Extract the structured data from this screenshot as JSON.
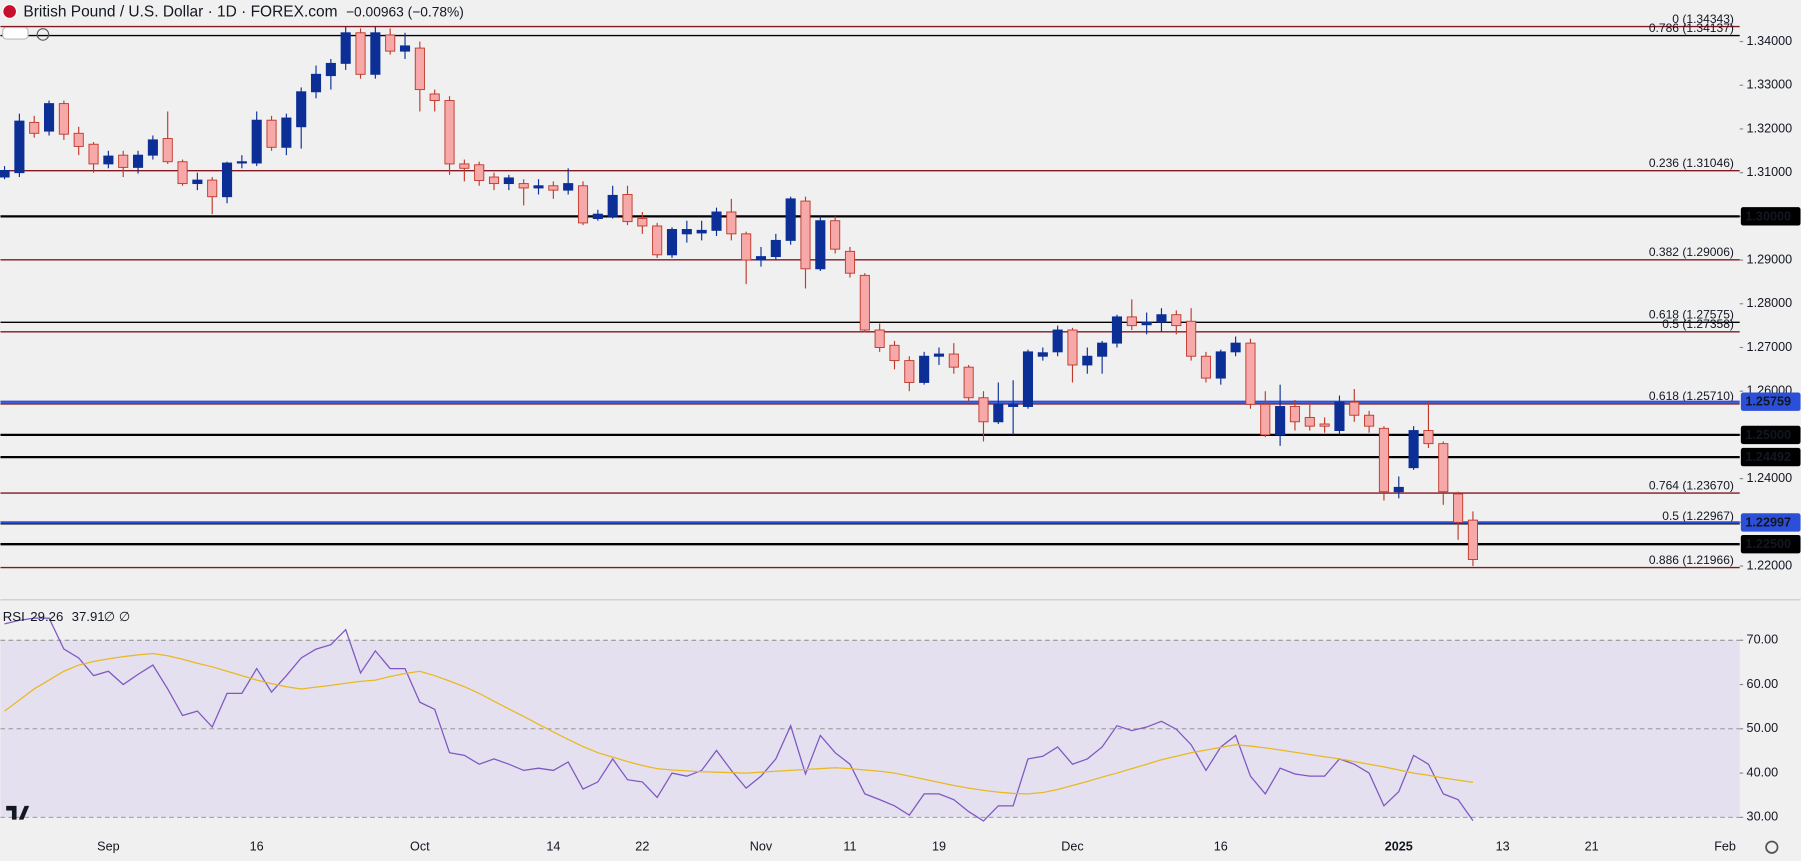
{
  "chart_data": [
    {
      "type": "candlestick",
      "title": "British Pound / U.S. Dollar · 1D · FOREX.com",
      "change": "−0.00963 (−0.78%)",
      "categories": [
        null,
        null,
        null,
        null,
        null,
        null,
        null,
        "Sep",
        null,
        null,
        null,
        null,
        null,
        null,
        null,
        null,
        null,
        "16",
        null,
        null,
        null,
        null,
        null,
        null,
        null,
        null,
        null,
        null,
        "Oct",
        null,
        null,
        null,
        null,
        null,
        null,
        null,
        null,
        "14",
        null,
        null,
        null,
        null,
        null,
        "22",
        null,
        null,
        null,
        null,
        null,
        null,
        null,
        "Nov",
        null,
        null,
        null,
        null,
        null,
        "11",
        null,
        null,
        null,
        null,
        null,
        "19",
        null,
        null,
        null,
        null,
        null,
        null,
        null,
        null,
        "Dec",
        null,
        null,
        null,
        null,
        null,
        null,
        null,
        null,
        null,
        "16",
        null,
        null,
        null,
        null,
        null,
        null,
        null,
        null,
        null,
        null,
        null,
        "2025",
        null,
        null,
        null,
        null,
        null,
        null,
        "13",
        null,
        null,
        null,
        null,
        null,
        "21",
        null,
        null,
        null,
        null,
        null,
        null,
        null,
        null,
        "Feb"
      ],
      "open": [
        1.309,
        1.31,
        1.3215,
        1.3195,
        1.3258,
        1.319,
        1.3165,
        1.312,
        1.314,
        1.3112,
        1.314,
        1.3178,
        1.3125,
        1.3075,
        1.3083,
        1.3045,
        1.3122,
        1.3122,
        1.322,
        1.3158,
        1.3205,
        1.3285,
        1.3322,
        1.335,
        1.342,
        1.3325,
        1.3415,
        1.3378,
        1.3385,
        1.328,
        1.3265,
        1.312,
        1.3118,
        1.309,
        1.3075,
        1.3075,
        1.3065,
        1.307,
        1.306,
        1.307,
        1.2995,
        1.3,
        1.305,
        1.2995,
        1.2978,
        1.2912,
        1.296,
        1.2962,
        1.2968,
        1.301,
        1.296,
        1.29,
        1.2908,
        1.2945,
        1.3035,
        1.288,
        1.299,
        1.292,
        1.2865,
        1.274,
        1.2705,
        1.267,
        1.262,
        1.268,
        1.2685,
        1.2655,
        1.2585,
        1.253,
        1.2565,
        1.2565,
        1.268,
        1.269,
        1.274,
        1.266,
        1.268,
        1.271,
        1.277,
        1.2752,
        1.2758,
        1.2775,
        1.276,
        1.268,
        1.263,
        1.269,
        1.271,
        1.257,
        1.25,
        1.2565,
        1.254,
        1.2525,
        1.251,
        1.2575,
        1.2545,
        1.2515,
        1.237,
        1.2425,
        1.251,
        1.248,
        1.2365,
        1.2305,
        null,
        null,
        null,
        null,
        null,
        null,
        null,
        null,
        null,
        null,
        null,
        null,
        null,
        null,
        null,
        null,
        null
      ],
      "high": [
        1.3115,
        1.3235,
        1.323,
        1.3265,
        1.3265,
        1.3205,
        1.317,
        1.315,
        1.315,
        1.315,
        1.3185,
        1.324,
        1.313,
        1.31,
        1.309,
        1.3125,
        1.314,
        1.324,
        1.323,
        1.3235,
        1.3295,
        1.3345,
        1.336,
        1.3434,
        1.343,
        1.3434,
        1.343,
        1.342,
        1.34,
        1.329,
        1.3275,
        1.313,
        1.3125,
        1.31,
        1.3095,
        1.3085,
        1.3085,
        1.308,
        1.311,
        1.308,
        1.3015,
        1.307,
        1.307,
        1.301,
        1.2985,
        1.2975,
        1.299,
        1.299,
        1.302,
        1.304,
        1.2965,
        1.293,
        1.296,
        1.3045,
        1.3045,
        1.3,
        1.3,
        1.293,
        1.287,
        1.2755,
        1.2715,
        1.268,
        1.269,
        1.27,
        1.271,
        1.266,
        1.26,
        1.262,
        1.2625,
        1.2695,
        1.27,
        1.275,
        1.2745,
        1.27,
        1.2715,
        1.2775,
        1.281,
        1.278,
        1.279,
        1.2785,
        1.279,
        1.269,
        1.2695,
        1.2725,
        1.272,
        1.26,
        1.2615,
        1.258,
        1.2575,
        1.254,
        1.259,
        1.2605,
        1.2555,
        1.252,
        1.2405,
        1.252,
        1.2575,
        1.2485,
        1.237,
        1.2325,
        null,
        null,
        null,
        null,
        null,
        null,
        null,
        null,
        null,
        null,
        null,
        null,
        null,
        null,
        null,
        null,
        null
      ],
      "low": [
        1.3085,
        1.309,
        1.318,
        1.3185,
        1.3175,
        1.314,
        1.31,
        1.311,
        1.309,
        1.3098,
        1.313,
        1.312,
        1.307,
        1.306,
        1.3005,
        1.303,
        1.311,
        1.3115,
        1.315,
        1.314,
        1.3155,
        1.327,
        1.329,
        1.3335,
        1.3315,
        1.3315,
        1.337,
        1.336,
        1.324,
        1.324,
        1.3095,
        1.308,
        1.307,
        1.306,
        1.306,
        1.3025,
        1.305,
        1.304,
        1.305,
        1.298,
        1.299,
        1.2995,
        1.298,
        1.296,
        1.2905,
        1.2905,
        1.294,
        1.2945,
        1.2955,
        1.2945,
        1.2845,
        1.2885,
        1.29,
        1.2935,
        1.2835,
        1.2875,
        1.2915,
        1.286,
        1.2735,
        1.269,
        1.265,
        1.26,
        1.2615,
        1.266,
        1.264,
        1.2575,
        1.2485,
        1.2525,
        1.25,
        1.256,
        1.267,
        1.268,
        1.262,
        1.264,
        1.264,
        1.27,
        1.274,
        1.273,
        1.2735,
        1.273,
        1.267,
        1.262,
        1.2615,
        1.268,
        1.256,
        1.2495,
        1.2475,
        1.251,
        1.251,
        1.2505,
        1.25,
        1.253,
        1.2505,
        1.235,
        1.2355,
        1.242,
        1.247,
        1.234,
        1.226,
        1.22,
        null,
        null,
        null,
        null,
        null,
        null,
        null,
        null,
        null,
        null,
        null,
        null,
        null,
        null,
        null,
        null,
        null
      ],
      "close": [
        1.3105,
        1.3218,
        1.319,
        1.3258,
        1.3188,
        1.316,
        1.312,
        1.3138,
        1.3112,
        1.314,
        1.3175,
        1.3125,
        1.3075,
        1.3083,
        1.3045,
        1.3122,
        1.3125,
        1.322,
        1.3158,
        1.3225,
        1.3285,
        1.3325,
        1.335,
        1.342,
        1.3325,
        1.342,
        1.3378,
        1.339,
        1.329,
        1.3265,
        1.312,
        1.311,
        1.3082,
        1.3075,
        1.3088,
        1.3065,
        1.307,
        1.306,
        1.3075,
        1.2985,
        1.3005,
        1.3048,
        1.2988,
        1.2978,
        1.2912,
        1.297,
        1.297,
        1.2968,
        1.301,
        1.296,
        1.29,
        1.2908,
        1.2945,
        1.304,
        1.288,
        1.299,
        1.2925,
        1.287,
        1.274,
        1.27,
        1.267,
        1.262,
        1.268,
        1.2685,
        1.2655,
        1.2585,
        1.253,
        1.257,
        1.257,
        1.269,
        1.2688,
        1.274,
        1.266,
        1.268,
        1.271,
        1.277,
        1.275,
        1.2758,
        1.2775,
        1.275,
        1.268,
        1.263,
        1.269,
        1.271,
        1.257,
        1.25,
        1.2565,
        1.253,
        1.252,
        1.252,
        1.2575,
        1.2545,
        1.252,
        1.237,
        1.238,
        1.251,
        1.248,
        1.237,
        1.23,
        1.2215,
        null,
        null,
        null,
        null,
        null,
        null,
        null,
        null,
        null,
        null,
        null,
        null,
        null,
        null,
        null,
        null,
        null
      ],
      "up_color": "#0c2f96",
      "down_color": "#f7a8a8",
      "down_border": "#c0392b",
      "ylim": [
        1.2124,
        1.3495
      ],
      "yticks": [
        {
          "value": 1.22,
          "label": "1.22000"
        },
        {
          "value": 1.23,
          "label": "1.23000"
        },
        {
          "value": 1.24,
          "label": "1.24000"
        },
        {
          "value": 1.25,
          "label": "1.25000"
        },
        {
          "value": 1.26,
          "label": "1.26000"
        },
        {
          "value": 1.27,
          "label": "1.27000"
        },
        {
          "value": 1.28,
          "label": "1.28000"
        },
        {
          "value": 1.29,
          "label": "1.29000"
        },
        {
          "value": 1.3,
          "label": "1.30000"
        },
        {
          "value": 1.31,
          "label": "1.31000"
        },
        {
          "value": 1.32,
          "label": "1.32000"
        },
        {
          "value": 1.33,
          "label": "1.33000"
        },
        {
          "value": 1.34,
          "label": "1.34000"
        }
      ],
      "fib_levels": [
        {
          "value": 1.34343,
          "label": "0 (1.34343)",
          "color": "#801922"
        },
        {
          "value": 1.34137,
          "label": "0.786 (1.34137)",
          "color": "#000000"
        },
        {
          "value": 1.31046,
          "label": "0.236 (1.31046)",
          "color": "#801922"
        },
        {
          "value": 1.29006,
          "label": "0.382 (1.29006)",
          "color": "#801922"
        },
        {
          "value": 1.27575,
          "label": "0.618 (1.27575)",
          "color": "#000000"
        },
        {
          "value": 1.27358,
          "label": "0.5 (1.27358)",
          "color": "#801922"
        },
        {
          "value": 1.2571,
          "label": "0.618 (1.25710)",
          "color": "#801922"
        },
        {
          "value": 1.2367,
          "label": "0.764 (1.23670)",
          "color": "#801922"
        },
        {
          "value": 1.22967,
          "label": "0.5 (1.22967)",
          "color": "#000000"
        },
        {
          "value": 1.21966,
          "label": "0.886 (1.21966)",
          "color": "#801922"
        }
      ],
      "lines": [
        {
          "value": 1.3,
          "label": "1.30000",
          "color": "#000000"
        },
        {
          "value": 1.25759,
          "label": "1.25759",
          "color": "#2b4fd8"
        },
        {
          "value": 1.25,
          "label": "1.25000",
          "color": "#000000"
        },
        {
          "value": 1.24492,
          "label": "1.24492",
          "color": "#000000"
        },
        {
          "value": 1.22997,
          "label": "1.22997",
          "color": "#2b4fd8"
        },
        {
          "value": 1.225,
          "label": "1.22500",
          "color": "#000000"
        }
      ]
    },
    {
      "type": "line",
      "title": "RSI",
      "placeholders": "∅ ∅",
      "series": [
        {
          "color": "#7e57c2",
          "values": [
            73.7,
            74.5,
            75,
            75,
            68,
            66,
            62,
            63,
            60,
            62.3,
            64.4,
            59,
            53,
            54,
            50.4,
            58,
            58,
            63.6,
            58.3,
            62,
            66,
            68,
            69,
            72.4,
            62.6,
            67.6,
            63.6,
            63.6,
            56,
            54.4,
            44.6,
            44,
            42,
            43.2,
            42,
            40.6,
            41.1,
            40.6,
            42.5,
            36.4,
            38,
            43.2,
            38.5,
            38,
            34.5,
            40,
            39.3,
            40.6,
            45.1,
            40.6,
            36.6,
            39.3,
            43.2,
            50.7,
            39.8,
            48.5,
            44.6,
            42,
            35.3,
            34,
            32.6,
            30.5,
            35.3,
            35.3,
            34,
            31.3,
            29.2,
            32.6,
            32.6,
            43.2,
            43.8,
            45.9,
            42,
            43.2,
            45.9,
            50.7,
            49.6,
            50.4,
            51.7,
            49.9,
            46.4,
            40.6,
            45.9,
            48.5,
            39.3,
            35.3,
            41.1,
            39.8,
            39.3,
            39.3,
            43.2,
            42,
            40,
            32.6,
            35.8,
            44,
            42,
            35.3,
            34,
            29.26,
            null,
            null,
            null,
            null,
            null,
            null,
            null,
            null,
            null,
            null,
            null,
            null,
            null,
            null,
            null,
            null,
            null
          ]
        },
        {
          "color": "#e8b923",
          "values": [
            54,
            56.5,
            59,
            61,
            63,
            64.4,
            65.2,
            65.8,
            66.3,
            66.7,
            67,
            66.5,
            65.7,
            64.8,
            64,
            63,
            62,
            61,
            60.2,
            59.5,
            59,
            59.4,
            59.8,
            60.3,
            60.7,
            61,
            61.8,
            62.5,
            63,
            62,
            60.8,
            59.5,
            58,
            56.2,
            54.5,
            52.8,
            51,
            49.3,
            47.6,
            46,
            44.6,
            43.6,
            42.6,
            41.7,
            41,
            40.7,
            40.5,
            40.3,
            40.2,
            40.1,
            40,
            40.2,
            40.4,
            40.6,
            40.8,
            41,
            41.2,
            41,
            40.7,
            40.4,
            40,
            39.3,
            38.6,
            37.9,
            37.2,
            36.6,
            36.1,
            35.7,
            35.4,
            35.3,
            35.6,
            36.3,
            37.2,
            38.1,
            39.1,
            40,
            41,
            42,
            43,
            43.8,
            44.6,
            45.2,
            45.8,
            46.4,
            46.1,
            45.7,
            45.2,
            44.7,
            44.2,
            43.7,
            43.2,
            42.6,
            42,
            41.4,
            40.7,
            40,
            39.5,
            38.9,
            38.4,
            37.91,
            null,
            null,
            null,
            null,
            null,
            null,
            null,
            null,
            null,
            null,
            null,
            null,
            null,
            null,
            null,
            null,
            null
          ]
        }
      ],
      "ylim": [
        27.4,
        79
      ],
      "yticks": [
        {
          "value": 30,
          "label": "30.00"
        },
        {
          "value": 40,
          "label": "40.00"
        },
        {
          "value": 50,
          "label": "50.00"
        },
        {
          "value": 60,
          "label": "60.00"
        },
        {
          "value": 70,
          "label": "70.00"
        }
      ],
      "levels": [
        70,
        50,
        30
      ],
      "band_color": "#e4e0ef"
    }
  ]
}
